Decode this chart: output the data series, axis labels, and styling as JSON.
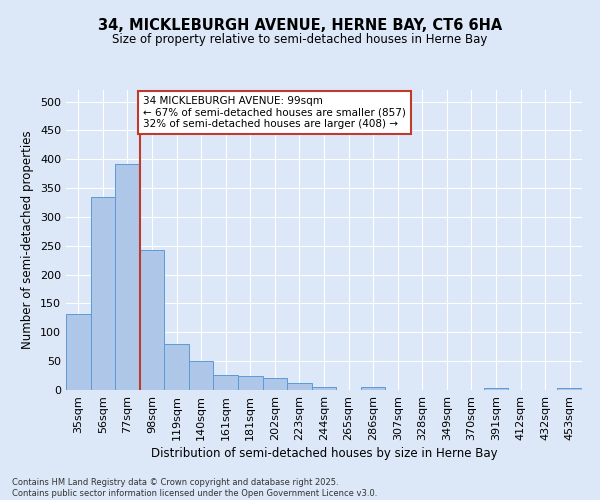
{
  "title_line1": "34, MICKLEBURGH AVENUE, HERNE BAY, CT6 6HA",
  "title_line2": "Size of property relative to semi-detached houses in Herne Bay",
  "xlabel": "Distribution of semi-detached houses by size in Herne Bay",
  "ylabel": "Number of semi-detached properties",
  "bar_labels": [
    "35sqm",
    "56sqm",
    "77sqm",
    "98sqm",
    "119sqm",
    "140sqm",
    "161sqm",
    "181sqm",
    "202sqm",
    "223sqm",
    "244sqm",
    "265sqm",
    "286sqm",
    "307sqm",
    "328sqm",
    "349sqm",
    "370sqm",
    "391sqm",
    "412sqm",
    "432sqm",
    "453sqm"
  ],
  "bar_values": [
    132,
    335,
    392,
    242,
    79,
    51,
    26,
    25,
    20,
    12,
    5,
    0,
    5,
    0,
    0,
    0,
    0,
    3,
    0,
    0,
    3
  ],
  "bar_color": "#aec6e8",
  "bar_edge_color": "#5b9bd5",
  "vline_index": 3,
  "vline_color": "#c0392b",
  "annotation_text": "34 MICKLEBURGH AVENUE: 99sqm\n← 67% of semi-detached houses are smaller (857)\n32% of semi-detached houses are larger (408) →",
  "annotation_box_color": "#ffffff",
  "annotation_box_edge": "#c0392b",
  "ylim": [
    0,
    520
  ],
  "yticks": [
    0,
    50,
    100,
    150,
    200,
    250,
    300,
    350,
    400,
    450,
    500
  ],
  "background_color": "#dce8f8",
  "grid_color": "#ffffff",
  "footnote": "Contains HM Land Registry data © Crown copyright and database right 2025.\nContains public sector information licensed under the Open Government Licence v3.0."
}
